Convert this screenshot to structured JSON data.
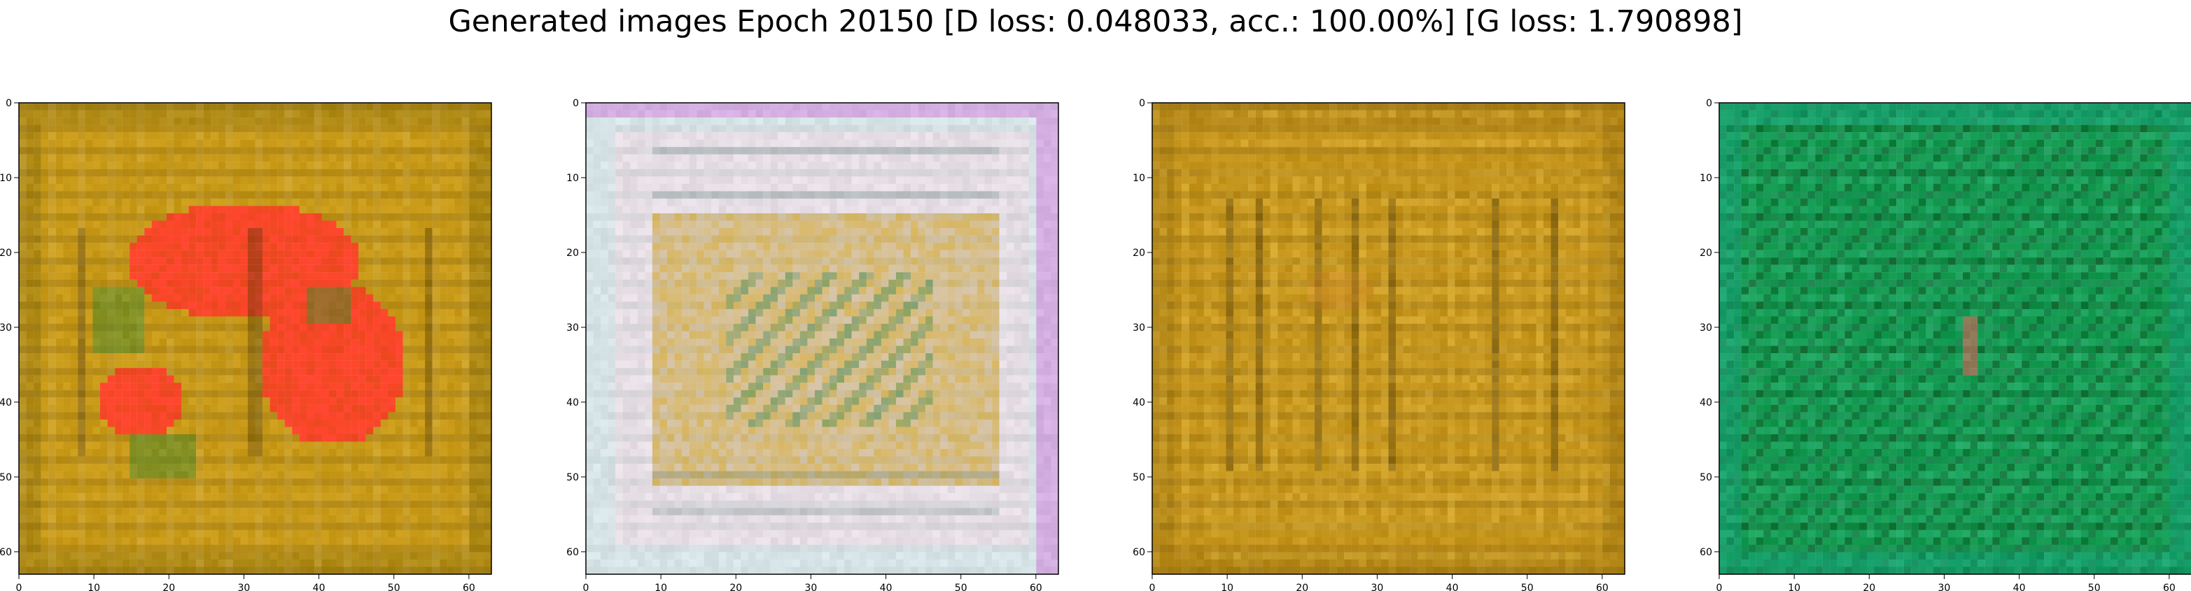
{
  "title": "Generated images Epoch 20150 [D loss: 0.048033, acc.: 100.00%] [G loss: 1.790898]",
  "chart_data": [
    {
      "type": "image",
      "xlim": [
        0,
        63
      ],
      "ylim": [
        63,
        0
      ],
      "x_ticks": [
        "0",
        "10",
        "20",
        "30",
        "40",
        "50",
        "60"
      ],
      "y_ticks": [
        "0",
        "10",
        "20",
        "30",
        "40",
        "50",
        "60"
      ],
      "palette": {
        "base": "#c89a18",
        "border": "#9b7d12",
        "dark": "#4a3508",
        "accent": "#ff3b2a",
        "green": "#4f8a2c",
        "light": "#d9c28a"
      }
    },
    {
      "type": "image",
      "xlim": [
        0,
        63
      ],
      "ylim": [
        63,
        0
      ],
      "x_ticks": [
        "0",
        "10",
        "20",
        "30",
        "40",
        "50",
        "60"
      ],
      "y_ticks": [
        "0",
        "10",
        "20",
        "30",
        "40",
        "50",
        "60"
      ],
      "palette": {
        "base": "#d9cfd8",
        "border": "#cfe4e6",
        "dark": "#2f5d56",
        "accent": "#c79a1e",
        "green": "#4a8d57",
        "light": "#f6f0f4",
        "edge": "#d15fda"
      }
    },
    {
      "type": "image",
      "xlim": [
        0,
        63
      ],
      "ylim": [
        63,
        0
      ],
      "x_ticks": [
        "0",
        "10",
        "20",
        "30",
        "40",
        "50",
        "60"
      ],
      "y_ticks": [
        "0",
        "10",
        "20",
        "30",
        "40",
        "50",
        "60"
      ],
      "palette": {
        "base": "#c4931a",
        "border": "#a67c14",
        "dark": "#4c3808",
        "accent": "#d78b2c",
        "green": "#6d7f1c",
        "light": "#e5bd43"
      }
    },
    {
      "type": "image",
      "xlim": [
        0,
        63
      ],
      "ylim": [
        63,
        0
      ],
      "x_ticks": [
        "0",
        "10",
        "20",
        "30",
        "40",
        "50",
        "60"
      ],
      "y_ticks": [
        "0",
        "10",
        "20",
        "30",
        "40",
        "50",
        "60"
      ],
      "palette": {
        "base": "#12984d",
        "border": "#0a7f48",
        "dark": "#0b3512",
        "accent": "#b96b58",
        "green": "#08a45e",
        "light": "#46d1a2",
        "edge": "#1db286"
      }
    }
  ]
}
